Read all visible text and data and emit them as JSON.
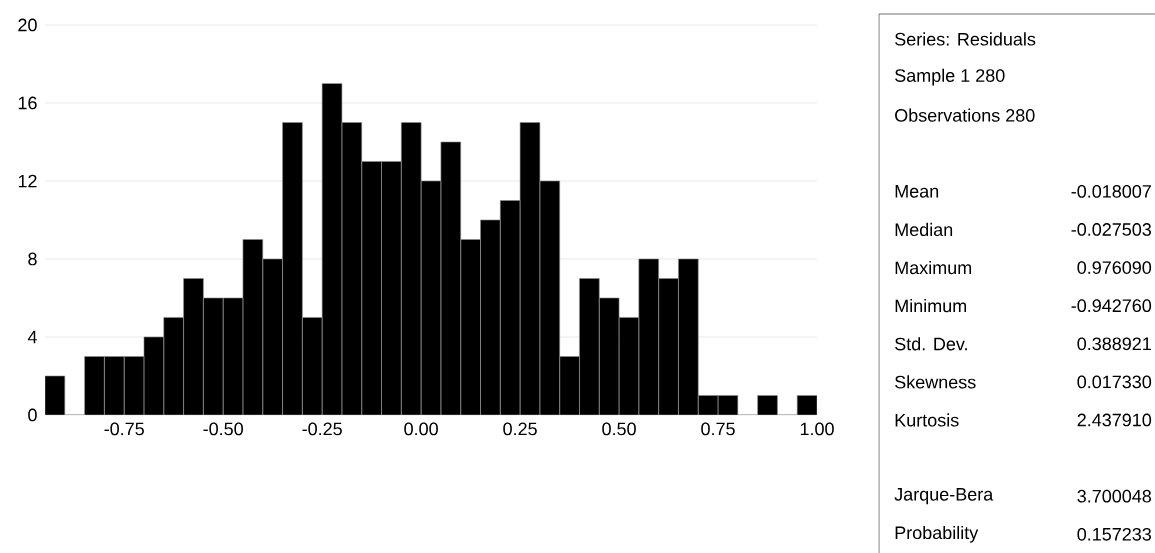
{
  "chart_data": [
    {
      "type": "histogram",
      "bins": [
        -0.95,
        -0.9,
        -0.85,
        -0.8,
        -0.75,
        -0.7,
        -0.65,
        -0.6,
        -0.55,
        -0.5,
        -0.45,
        -0.4,
        -0.35,
        -0.3,
        -0.25,
        -0.2,
        -0.15,
        -0.1,
        -0.05,
        0.0,
        0.05,
        0.1,
        0.15,
        0.2,
        0.25,
        0.3,
        0.35,
        0.4,
        0.45,
        0.5,
        0.55,
        0.6,
        0.65,
        0.7,
        0.75,
        0.8,
        0.85,
        0.9,
        0.95,
        1.0
      ],
      "values": [
        2,
        0,
        3,
        3,
        3,
        4,
        5,
        7,
        6,
        6,
        9,
        8,
        15,
        5,
        17,
        15,
        13,
        13,
        15,
        12,
        14,
        9,
        10,
        11,
        15,
        12,
        3,
        7,
        6,
        5,
        8,
        7,
        8,
        1,
        1,
        0,
        1,
        0,
        1
      ],
      "color": "#000000",
      "xlim": [
        -0.95,
        1.0
      ],
      "ylim": [
        0,
        20
      ],
      "xticks": [
        {
          "value": -0.75,
          "label": "-0.75"
        },
        {
          "value": -0.5,
          "label": "-0.50"
        },
        {
          "value": -0.25,
          "label": "-0.25"
        },
        {
          "value": 0,
          "label": "0.00"
        },
        {
          "value": 0.25,
          "label": "0.25"
        },
        {
          "value": 0.5,
          "label": "0.50"
        },
        {
          "value": 0.75,
          "label": "0.75"
        },
        {
          "value": 1.0,
          "label": "1.00"
        }
      ],
      "yticks": [
        0,
        4,
        8,
        12,
        16,
        20
      ],
      "grid": "y"
    },
    {
      "type": "other",
      "annotations": [
        "Series: Residuals",
        "Sample 1 280",
        "Observations 280"
      ],
      "categories": [
        "Mean",
        "Median",
        "Maximum",
        "Minimum",
        "Std. Dev.",
        "Skewness",
        "Kurtosis",
        null,
        "Jarque-Bera",
        "Probability"
      ],
      "value_labels": [
        "-0.018007",
        "-0.027503",
        "0.976090",
        "-0.942760",
        "0.388921",
        "0.017330",
        "2.437910",
        null,
        "3.700048",
        "0.157233"
      ]
    }
  ]
}
